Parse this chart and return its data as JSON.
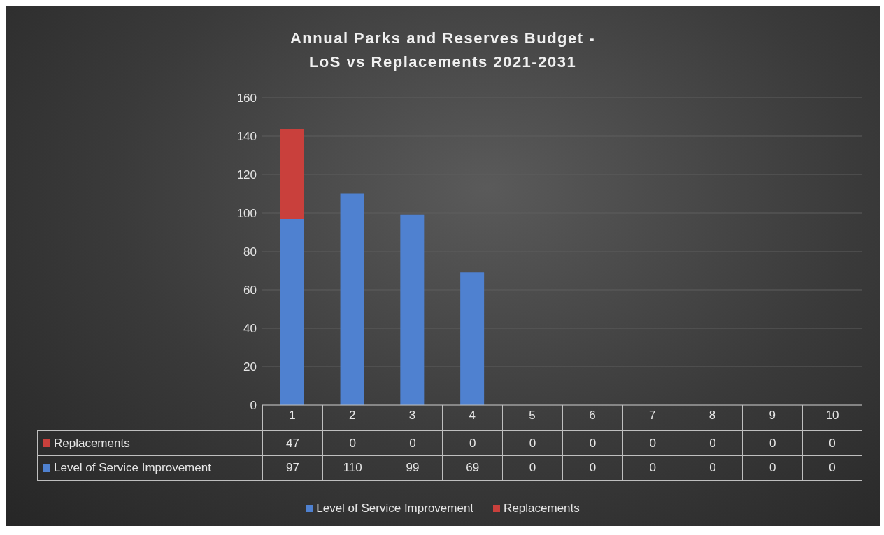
{
  "chart_data": {
    "type": "bar",
    "title": "Annual Parks and Reserves Budget -\nLoS vs Replacements 2021-2031",
    "categories": [
      "1",
      "2",
      "3",
      "4",
      "5",
      "6",
      "7",
      "8",
      "9",
      "10"
    ],
    "series": [
      {
        "name": "Level of Service Improvement",
        "color": "#4f81d0",
        "values": [
          97,
          110,
          99,
          69,
          0,
          0,
          0,
          0,
          0,
          0
        ]
      },
      {
        "name": "Replacements",
        "color": "#c9403c",
        "values": [
          47,
          0,
          0,
          0,
          0,
          0,
          0,
          0,
          0,
          0
        ]
      }
    ],
    "stacked": true,
    "ylim": [
      0,
      160
    ],
    "yticks": [
      0,
      20,
      40,
      60,
      80,
      100,
      120,
      140,
      160
    ],
    "grid": "y",
    "legend": "bottom",
    "data_labels": true
  }
}
